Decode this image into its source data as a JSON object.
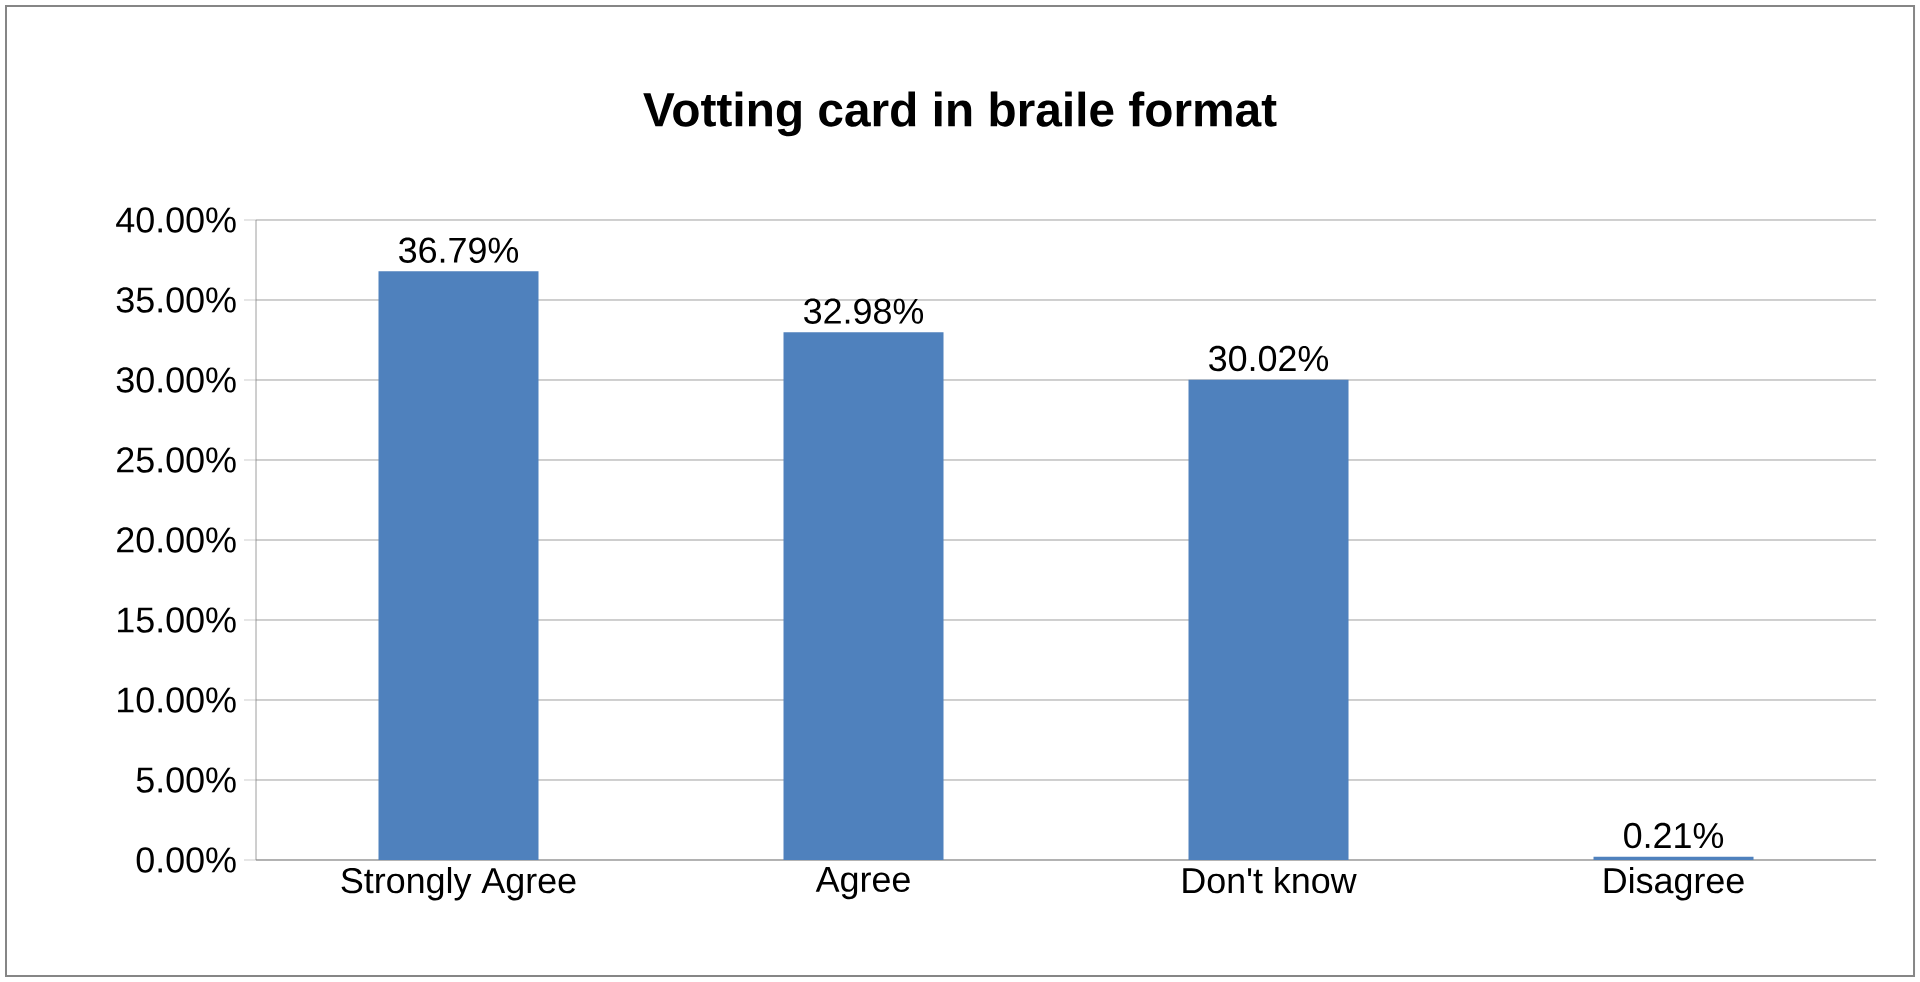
{
  "chart_data": {
    "type": "bar",
    "title": "Votting card in braile format",
    "categories": [
      "Strongly Agree",
      "Agree",
      "Don't know",
      "Disagree"
    ],
    "values": [
      36.79,
      32.98,
      30.02,
      0.21
    ],
    "value_labels": [
      "36.79%",
      "32.98%",
      "30.02%",
      "0.21%"
    ],
    "color": "#4f81bd",
    "ylim": [
      0,
      40
    ],
    "yticks": [
      {
        "value": 0,
        "label": "0.00%"
      },
      {
        "value": 5,
        "label": "5.00%"
      },
      {
        "value": 10,
        "label": "10.00%"
      },
      {
        "value": 15,
        "label": "15.00%"
      },
      {
        "value": 20,
        "label": "20.00%"
      },
      {
        "value": 25,
        "label": "25.00%"
      },
      {
        "value": 30,
        "label": "30.00%"
      },
      {
        "value": 35,
        "label": "35.00%"
      },
      {
        "value": 40,
        "label": "40.00%"
      }
    ],
    "grid": "y"
  }
}
